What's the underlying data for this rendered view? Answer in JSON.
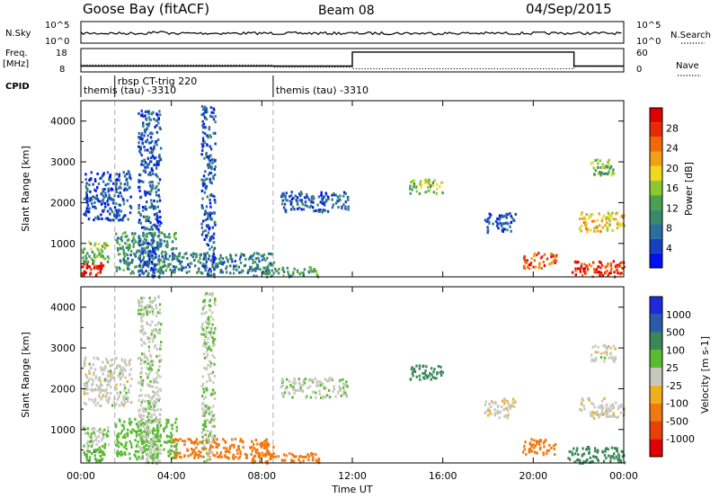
{
  "header": {
    "station": "Goose Bay (fitACF)",
    "beam": "Beam 08",
    "date": "04/Sep/2015"
  },
  "params": {
    "nsky_label": "N.Sky",
    "nsky_ticks": [
      "10^5",
      "10^0"
    ],
    "nsearch_label": "N.Search",
    "nsearch_ticks": [
      "10^5",
      "10^0"
    ],
    "freq_label_line1": "Freq.",
    "freq_label_line2": "[MHz]",
    "freq_ticks": [
      "18",
      "8"
    ],
    "nave_label": "Nave",
    "nave_ticks": [
      "60",
      "0"
    ],
    "cpid_label": "CPID",
    "cpid_segments": [
      {
        "start_h": 0.0,
        "label": "themis (tau) -3310"
      },
      {
        "start_h": 1.5,
        "label": "rbsp CT-trig 220"
      },
      {
        "start_h": 8.5,
        "label": "themis (tau) -3310"
      }
    ]
  },
  "x_axis": {
    "label": "Time UT",
    "ticks": [
      "00:00",
      "04:00",
      "08:00",
      "12:00",
      "16:00",
      "20:00",
      "00:00"
    ],
    "tick_hours": [
      0,
      4,
      8,
      12,
      16,
      20,
      24
    ],
    "range_hours": [
      0,
      24
    ]
  },
  "power_panel": {
    "ylabel": "Slant Range [km]",
    "yticks": [
      "1000",
      "2000",
      "3000",
      "4000"
    ],
    "colorbar_label": "Power [dB]",
    "colorbar_ticks": [
      "4",
      "8",
      "12",
      "16",
      "20",
      "24",
      "28"
    ],
    "colorbar_colors": [
      "#0010f0",
      "#1540c0",
      "#2c6e9e",
      "#3a8a6a",
      "#4aa050",
      "#8cc832",
      "#f0d81e",
      "#f0a014",
      "#f06a0a",
      "#e82a04",
      "#e00000"
    ]
  },
  "velocity_panel": {
    "ylabel": "Slant Range [km]",
    "yticks": [
      "1000",
      "2000",
      "3000",
      "4000"
    ],
    "colorbar_label": "Velocity [m s-1]",
    "colorbar_ticks": [
      "1000",
      "500",
      "100",
      "25",
      "-25",
      "-100",
      "-500",
      "-1000"
    ],
    "colorbar_colors": [
      "#1e2ad8",
      "#2a5aa8",
      "#3a8858",
      "#5aba32",
      "#c8c8c0",
      "#f0b01e",
      "#f07a10",
      "#e84008",
      "#e00000"
    ]
  },
  "chart_data": {
    "type": "heatmap",
    "title": "Goose Bay (fitACF)   Beam 08   04/Sep/2015",
    "xlabel": "Time UT",
    "ylabel": "Slant Range [km]",
    "xlim_hours": [
      0,
      24
    ],
    "ylim_km": [
      180,
      4500
    ],
    "dashed_lines_hours": [
      1.5,
      8.5
    ],
    "frequency_mhz": [
      {
        "start_h": 0.0,
        "end_h": 12.0,
        "value": 10.5
      },
      {
        "start_h": 12.0,
        "end_h": 21.8,
        "value": 16.5
      },
      {
        "start_h": 21.8,
        "end_h": 24.0,
        "value": 10.5
      }
    ],
    "nave": [
      {
        "start_h": 0.0,
        "end_h": 8.5,
        "value": 18
      },
      {
        "start_h": 8.5,
        "end_h": 12.0,
        "value": 12
      },
      {
        "start_h": 12.0,
        "end_h": 21.8,
        "value": 8
      },
      {
        "start_h": 21.8,
        "end_h": 24.0,
        "value": 14
      }
    ],
    "echo_regions": [
      {
        "t0": 0.0,
        "t1": 1.0,
        "r0": 250,
        "r1": 550,
        "power_db": 28,
        "velocity": 80
      },
      {
        "t0": 0.0,
        "t1": 1.2,
        "r0": 550,
        "r1": 1100,
        "power_db": 14,
        "velocity": 30
      },
      {
        "t0": 0.1,
        "t1": 2.2,
        "r0": 1600,
        "r1": 2800,
        "power_db": 5,
        "velocity": 0
      },
      {
        "t0": 1.5,
        "t1": 4.2,
        "r0": 300,
        "r1": 1300,
        "power_db": 10,
        "velocity": 60
      },
      {
        "t0": 2.5,
        "t1": 3.5,
        "r0": 200,
        "r1": 4300,
        "power_db": 6,
        "velocity": 10
      },
      {
        "t0": 4.0,
        "t1": 8.5,
        "r0": 300,
        "r1": 800,
        "power_db": 9,
        "velocity": -150
      },
      {
        "t0": 5.3,
        "t1": 5.9,
        "r0": 200,
        "r1": 4400,
        "power_db": 6,
        "velocity": 20
      },
      {
        "t0": 7.5,
        "t1": 10.5,
        "r0": 200,
        "r1": 450,
        "power_db": 12,
        "velocity": -150
      },
      {
        "t0": 8.8,
        "t1": 11.8,
        "r0": 1800,
        "r1": 2300,
        "power_db": 6,
        "velocity": 15
      },
      {
        "t0": 14.5,
        "t1": 16.0,
        "r0": 2250,
        "r1": 2600,
        "power_db": 16,
        "velocity": 400
      },
      {
        "t0": 17.8,
        "t1": 19.2,
        "r0": 1300,
        "r1": 1800,
        "power_db": 6,
        "velocity": -10
      },
      {
        "t0": 19.5,
        "t1": 21.0,
        "r0": 400,
        "r1": 800,
        "power_db": 26,
        "velocity": -200
      },
      {
        "t0": 21.5,
        "t1": 24.0,
        "r0": 200,
        "r1": 600,
        "power_db": 28,
        "velocity": 150
      },
      {
        "t0": 22.0,
        "t1": 24.0,
        "r0": 1300,
        "r1": 1800,
        "power_db": 20,
        "velocity": 0
      },
      {
        "t0": 22.5,
        "t1": 23.6,
        "r0": 2700,
        "r1": 3100,
        "power_db": 14,
        "velocity": 0
      }
    ]
  }
}
